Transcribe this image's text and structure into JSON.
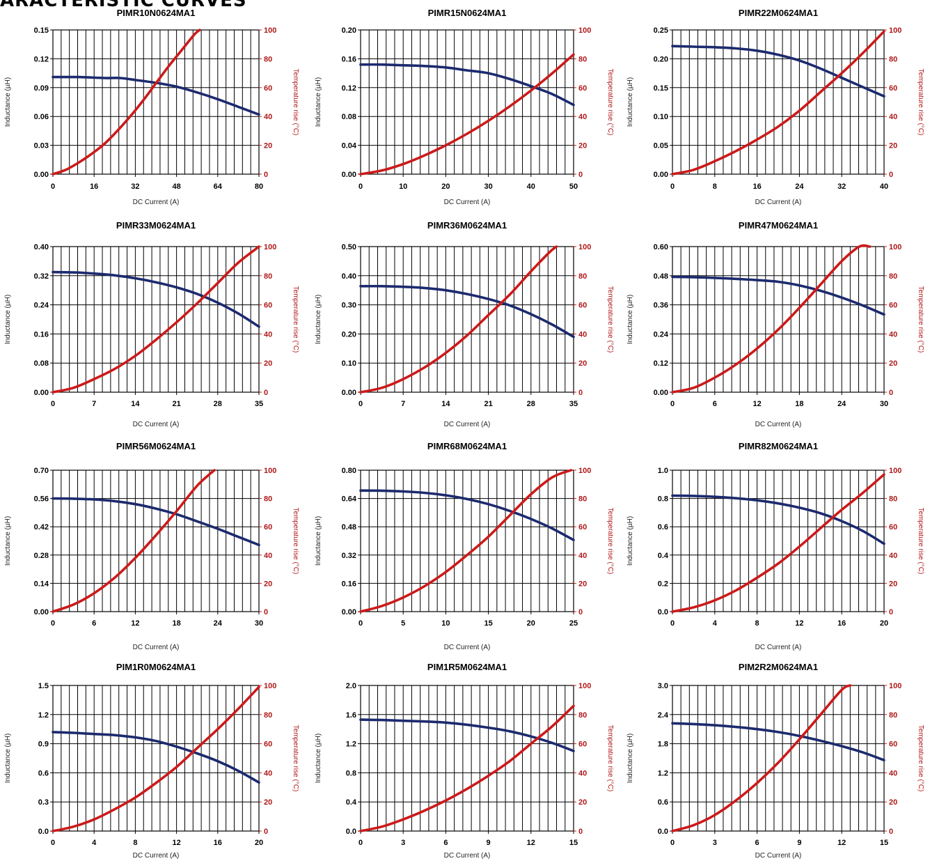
{
  "page_header": "ARACTERISTIC CURVES",
  "colors": {
    "inductance": "#1c2a6e",
    "temperature": "#cc1a1a",
    "grid": "#000000"
  },
  "chart_data": [
    {
      "type": "line",
      "title": "PIMR10N0624MA1",
      "xlabel": "DC Current (A)",
      "ylabel": "Inductance (µH)",
      "y2label": "Temperature rise (°C)",
      "xlim": [
        0,
        80
      ],
      "xticks": [
        "0",
        "16",
        "32",
        "48",
        "64",
        "80"
      ],
      "ylim": [
        0,
        0.15
      ],
      "yticks": [
        "0.00",
        "0.03",
        "0.06",
        "0.09",
        "0.12",
        "0.15"
      ],
      "y2lim": [
        0,
        100
      ],
      "y2ticks": [
        "0",
        "20",
        "40",
        "60",
        "80",
        "100"
      ],
      "grid": true,
      "series": [
        {
          "axis": "left",
          "x": [
            0,
            10,
            20,
            26,
            32,
            40,
            48,
            56,
            64,
            72,
            80
          ],
          "y": [
            0.101,
            0.101,
            0.1,
            0.1,
            0.098,
            0.095,
            0.091,
            0.085,
            0.078,
            0.07,
            0.062
          ]
        },
        {
          "axis": "right",
          "x": [
            0,
            5,
            10,
            15,
            20,
            25,
            30,
            35,
            40,
            45,
            50,
            55,
            57
          ],
          "y": [
            0,
            3,
            8,
            14,
            21,
            30,
            40,
            51,
            63,
            75,
            86,
            97,
            100
          ]
        }
      ]
    },
    {
      "type": "line",
      "title": "PIMR15N0624MA1",
      "xlabel": "DC Current (A)",
      "ylabel": "Inductance (µH)",
      "y2label": "Temperature rise (°C)",
      "xlim": [
        0,
        50
      ],
      "xticks": [
        "0",
        "10",
        "20",
        "30",
        "40",
        "50"
      ],
      "ylim": [
        0,
        0.2
      ],
      "yticks": [
        "0.00",
        "0.04",
        "0.08",
        "0.12",
        "0.16",
        "0.20"
      ],
      "y2lim": [
        0,
        100
      ],
      "y2ticks": [
        "0",
        "20",
        "40",
        "60",
        "80",
        "100"
      ],
      "grid": true,
      "series": [
        {
          "axis": "left",
          "x": [
            0,
            5,
            10,
            15,
            20,
            25,
            30,
            35,
            40,
            45,
            50
          ],
          "y": [
            0.152,
            0.152,
            0.151,
            0.15,
            0.148,
            0.144,
            0.14,
            0.132,
            0.122,
            0.111,
            0.096
          ]
        },
        {
          "axis": "right",
          "x": [
            0,
            5,
            10,
            15,
            20,
            25,
            30,
            35,
            40,
            45,
            50
          ],
          "y": [
            0,
            2.5,
            7,
            13,
            20,
            28,
            37,
            47,
            58,
            70,
            83
          ]
        }
      ]
    },
    {
      "type": "line",
      "title": "PIMR22M0624MA1",
      "xlabel": "DC Current (A)",
      "ylabel": "Inductance (µH)",
      "y2label": "Temperature rise (°C)",
      "xlim": [
        0,
        40
      ],
      "xticks": [
        "0",
        "8",
        "16",
        "24",
        "32",
        "40"
      ],
      "ylim": [
        0,
        0.25
      ],
      "yticks": [
        "0.00",
        "0.05",
        "0.10",
        "0.15",
        "0.20",
        "0.25"
      ],
      "y2lim": [
        0,
        100
      ],
      "y2ticks": [
        "0",
        "20",
        "40",
        "60",
        "80",
        "100"
      ],
      "grid": true,
      "series": [
        {
          "axis": "left",
          "x": [
            0,
            4,
            8,
            12,
            16,
            20,
            24,
            28,
            32,
            36,
            40
          ],
          "y": [
            0.222,
            0.221,
            0.22,
            0.218,
            0.214,
            0.207,
            0.197,
            0.183,
            0.167,
            0.151,
            0.135
          ]
        },
        {
          "axis": "right",
          "x": [
            0,
            4,
            8,
            12,
            16,
            20,
            24,
            28,
            32,
            36,
            40
          ],
          "y": [
            0,
            3,
            9,
            16,
            24,
            33,
            44,
            57,
            70,
            84,
            99
          ]
        }
      ]
    },
    {
      "type": "line",
      "title": "PIMR33M0624MA1",
      "xlabel": "DC Current (A)",
      "ylabel": "Inductance (µH)",
      "y2label": "Temperature rise (°C)",
      "xlim": [
        0,
        35
      ],
      "xticks": [
        "0",
        "7",
        "14",
        "21",
        "28",
        "35"
      ],
      "ylim": [
        0,
        0.4
      ],
      "yticks": [
        "0.00",
        "0.08",
        "0.16",
        "0.24",
        "0.32",
        "0.40"
      ],
      "y2lim": [
        0,
        100
      ],
      "y2ticks": [
        "0",
        "20",
        "40",
        "60",
        "80",
        "100"
      ],
      "grid": true,
      "series": [
        {
          "axis": "left",
          "x": [
            0,
            3.5,
            7,
            10.5,
            14,
            17.5,
            21,
            24.5,
            28,
            31.5,
            35
          ],
          "y": [
            0.33,
            0.329,
            0.326,
            0.321,
            0.313,
            0.302,
            0.288,
            0.27,
            0.246,
            0.216,
            0.18
          ]
        },
        {
          "axis": "right",
          "x": [
            0,
            3.5,
            7,
            10.5,
            14,
            17.5,
            21,
            24.5,
            28,
            31.5,
            35
          ],
          "y": [
            0,
            3,
            9,
            16,
            25,
            36,
            48,
            61,
            75,
            89,
            100
          ]
        }
      ]
    },
    {
      "type": "line",
      "title": "PIMR36M0624MA1",
      "xlabel": "DC Current (A)",
      "ylabel": "Inductance (µH)",
      "y2label": "Temperature rise (°C)",
      "xlim": [
        0,
        35
      ],
      "xticks": [
        "0",
        "7",
        "14",
        "21",
        "28",
        "35"
      ],
      "ylim": [
        0,
        0.5
      ],
      "yticks": [
        "0.00",
        "0.10",
        "0.20",
        "0.30",
        "0.40",
        "0.50"
      ],
      "y2lim": [
        0,
        100
      ],
      "y2ticks": [
        "0",
        "20",
        "40",
        "60",
        "80",
        "100"
      ],
      "grid": true,
      "series": [
        {
          "axis": "left",
          "x": [
            0,
            3.5,
            7,
            10.5,
            14,
            17.5,
            21,
            24.5,
            28,
            31.5,
            35
          ],
          "y": [
            0.364,
            0.364,
            0.362,
            0.358,
            0.35,
            0.337,
            0.32,
            0.298,
            0.268,
            0.232,
            0.19
          ]
        },
        {
          "axis": "right",
          "x": [
            0,
            3.5,
            7,
            10.5,
            14,
            17.5,
            21,
            24.5,
            28,
            31,
            32.2
          ],
          "y": [
            0,
            3,
            9,
            17,
            27,
            39,
            53,
            67,
            83,
            96,
            100
          ]
        }
      ]
    },
    {
      "type": "line",
      "title": "PIMR47M0624MA1",
      "xlabel": "DC Current (A)",
      "ylabel": "Inductance (µH)",
      "y2label": "Temperature rise (°C)",
      "xlim": [
        0,
        30
      ],
      "xticks": [
        "0",
        "6",
        "12",
        "18",
        "24",
        "30"
      ],
      "ylim": [
        0,
        0.6
      ],
      "yticks": [
        "0.00",
        "0.12",
        "0.24",
        "0.36",
        "0.48",
        "0.60"
      ],
      "y2lim": [
        0,
        100
      ],
      "y2ticks": [
        "0",
        "20",
        "40",
        "60",
        "80",
        "100"
      ],
      "grid": true,
      "series": [
        {
          "axis": "left",
          "x": [
            0,
            3,
            6,
            9,
            12,
            15,
            18,
            21,
            24,
            27,
            30
          ],
          "y": [
            0.475,
            0.474,
            0.471,
            0.467,
            0.462,
            0.455,
            0.44,
            0.418,
            0.39,
            0.357,
            0.32
          ]
        },
        {
          "axis": "right",
          "x": [
            0,
            3,
            6,
            9,
            12,
            15,
            18,
            21,
            24,
            26.5,
            28
          ],
          "y": [
            0,
            3,
            10,
            19,
            30,
            43,
            58,
            74,
            90,
            100,
            100
          ]
        }
      ]
    },
    {
      "type": "line",
      "title": "PIMR56M0624MA1",
      "xlabel": "DC Current (A)",
      "ylabel": "Inductance (µH)",
      "y2label": "Temperature rise (°C)",
      "xlim": [
        0,
        30
      ],
      "xticks": [
        "0",
        "6",
        "12",
        "18",
        "24",
        "30"
      ],
      "ylim": [
        0,
        0.7
      ],
      "yticks": [
        "0.00",
        "0.14",
        "0.28",
        "0.42",
        "0.56",
        "0.70"
      ],
      "y2lim": [
        0,
        100
      ],
      "y2ticks": [
        "0",
        "20",
        "40",
        "60",
        "80",
        "100"
      ],
      "grid": true,
      "series": [
        {
          "axis": "left",
          "x": [
            0,
            3,
            6,
            9,
            12,
            15,
            18,
            21,
            24,
            27,
            30
          ],
          "y": [
            0.56,
            0.559,
            0.555,
            0.547,
            0.532,
            0.51,
            0.482,
            0.447,
            0.41,
            0.37,
            0.33
          ]
        },
        {
          "axis": "right",
          "x": [
            0,
            3,
            6,
            9,
            12,
            15,
            18,
            21,
            23.5
          ],
          "y": [
            0,
            5,
            13,
            24,
            38,
            54,
            71,
            89,
            100
          ]
        }
      ]
    },
    {
      "type": "line",
      "title": "PIMR68M0624MA1",
      "xlabel": "DC Current (A)",
      "ylabel": "Inductance (µH)",
      "y2label": "Temperature rise (°C)",
      "xlim": [
        0,
        25
      ],
      "xticks": [
        "0",
        "5",
        "10",
        "15",
        "20",
        "25"
      ],
      "ylim": [
        0,
        0.8
      ],
      "yticks": [
        "0.00",
        "0.16",
        "0.32",
        "0.48",
        "0.64",
        "0.80"
      ],
      "y2lim": [
        0,
        100
      ],
      "y2ticks": [
        "0",
        "20",
        "40",
        "60",
        "80",
        "100"
      ],
      "grid": true,
      "series": [
        {
          "axis": "left",
          "x": [
            0,
            2.5,
            5,
            7.5,
            10,
            12.5,
            15,
            17.5,
            20,
            22.5,
            25
          ],
          "y": [
            0.685,
            0.684,
            0.68,
            0.672,
            0.658,
            0.637,
            0.608,
            0.57,
            0.524,
            0.47,
            0.405
          ]
        },
        {
          "axis": "right",
          "x": [
            0,
            2.5,
            5,
            7.5,
            10,
            12.5,
            15,
            17.5,
            20,
            22.5,
            24.7
          ],
          "y": [
            0,
            4,
            10,
            18,
            28,
            40,
            53,
            68,
            83,
            95,
            100
          ]
        }
      ]
    },
    {
      "type": "line",
      "title": "PIMR82M0624MA1",
      "xlabel": "DC Current (A)",
      "ylabel": "Inductance (µH)",
      "y2label": "Temperature rise (°C)",
      "xlim": [
        0,
        20
      ],
      "xticks": [
        "0",
        "4",
        "8",
        "12",
        "16",
        "20"
      ],
      "ylim": [
        0,
        1.0
      ],
      "yticks": [
        "0.0",
        "0.2",
        "0.4",
        "0.6",
        "0.8",
        "1.0"
      ],
      "y2lim": [
        0,
        100
      ],
      "y2ticks": [
        "0",
        "20",
        "40",
        "60",
        "80",
        "100"
      ],
      "grid": true,
      "series": [
        {
          "axis": "left",
          "x": [
            0,
            2,
            4,
            6,
            8,
            10,
            12,
            14,
            16,
            18,
            20
          ],
          "y": [
            0.82,
            0.818,
            0.812,
            0.802,
            0.787,
            0.765,
            0.735,
            0.695,
            0.64,
            0.57,
            0.48
          ]
        },
        {
          "axis": "right",
          "x": [
            0,
            2,
            4,
            6,
            8,
            10,
            12,
            14,
            16,
            18,
            20
          ],
          "y": [
            0,
            3,
            8,
            15,
            24,
            34,
            46,
            59,
            72,
            84,
            97
          ]
        }
      ]
    },
    {
      "type": "line",
      "title": "PIM1R0M0624MA1",
      "xlabel": "DC Current (A)",
      "ylabel": "Inductance (µH)",
      "y2label": "Temperature rise (°C)",
      "xlim": [
        0,
        20
      ],
      "xticks": [
        "0",
        "4",
        "8",
        "12",
        "16",
        "20"
      ],
      "ylim": [
        0,
        1.5
      ],
      "yticks": [
        "0.0",
        "0.3",
        "0.6",
        "0.9",
        "1.2",
        "1.5"
      ],
      "y2lim": [
        0,
        100
      ],
      "y2ticks": [
        "0",
        "20",
        "40",
        "60",
        "80",
        "100"
      ],
      "grid": true,
      "series": [
        {
          "axis": "left",
          "x": [
            0,
            2,
            4,
            6,
            8,
            10,
            12,
            14,
            16,
            18,
            20
          ],
          "y": [
            1.02,
            1.012,
            1.0,
            0.988,
            0.965,
            0.928,
            0.87,
            0.8,
            0.72,
            0.62,
            0.5
          ]
        },
        {
          "axis": "right",
          "x": [
            0,
            2,
            4,
            6,
            8,
            10,
            12,
            14,
            16,
            18,
            20
          ],
          "y": [
            0,
            3,
            8,
            15,
            23,
            33,
            44,
            57,
            70,
            84,
            99
          ]
        }
      ]
    },
    {
      "type": "line",
      "title": "PIM1R5M0624MA1",
      "xlabel": "DC Current (A)",
      "ylabel": "Inductance (µH)",
      "y2label": "Temperature rise (°C)",
      "xlim": [
        0,
        15
      ],
      "xticks": [
        "0",
        "3",
        "6",
        "9",
        "12",
        "15"
      ],
      "ylim": [
        0,
        2.0
      ],
      "yticks": [
        "0.0",
        "0.4",
        "0.8",
        "1.2",
        "1.6",
        "2.0"
      ],
      "y2lim": [
        0,
        100
      ],
      "y2ticks": [
        "0",
        "20",
        "40",
        "60",
        "80",
        "100"
      ],
      "grid": true,
      "series": [
        {
          "axis": "left",
          "x": [
            0,
            1.5,
            3,
            4.5,
            6,
            7.5,
            9,
            10.5,
            12,
            13.5,
            15
          ],
          "y": [
            1.53,
            1.525,
            1.515,
            1.505,
            1.49,
            1.46,
            1.42,
            1.37,
            1.3,
            1.21,
            1.1
          ]
        },
        {
          "axis": "right",
          "x": [
            0,
            1.5,
            3,
            4.5,
            6,
            7.5,
            9,
            10.5,
            12,
            13.5,
            15
          ],
          "y": [
            0,
            3,
            8,
            14,
            21,
            29,
            38,
            48,
            60,
            72,
            86
          ]
        }
      ]
    },
    {
      "type": "line",
      "title": "PIM2R2M0624MA1",
      "xlabel": "DC Current (A)",
      "ylabel": "Inductance (µH)",
      "y2label": "Temperature rise (°C)",
      "xlim": [
        0,
        15
      ],
      "xticks": [
        "0",
        "3",
        "6",
        "9",
        "12",
        "15"
      ],
      "ylim": [
        0,
        3.0
      ],
      "yticks": [
        "0.0",
        "0.6",
        "1.2",
        "1.8",
        "2.4",
        "3.0"
      ],
      "y2lim": [
        0,
        100
      ],
      "y2ticks": [
        "0",
        "20",
        "40",
        "60",
        "80",
        "100"
      ],
      "grid": true,
      "series": [
        {
          "axis": "left",
          "x": [
            0,
            1.5,
            3,
            4.5,
            6,
            7.5,
            9,
            10.5,
            12,
            13.5,
            15
          ],
          "y": [
            2.22,
            2.205,
            2.18,
            2.145,
            2.1,
            2.04,
            1.96,
            1.86,
            1.75,
            1.62,
            1.46
          ]
        },
        {
          "axis": "right",
          "x": [
            0,
            1.5,
            3,
            4.5,
            6,
            7.5,
            9,
            10.5,
            12,
            12.6
          ],
          "y": [
            0,
            4,
            11,
            21,
            33,
            47,
            63,
            80,
            97,
            100
          ]
        }
      ]
    }
  ]
}
